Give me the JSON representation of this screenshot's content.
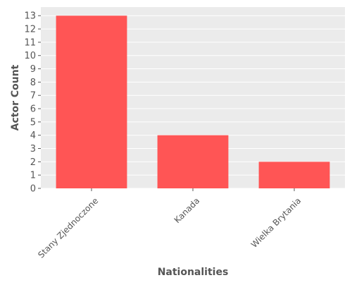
{
  "chart_data": {
    "type": "bar",
    "categories": [
      "Stany Zjednoczone",
      "Kanada",
      "Wielka Brytania"
    ],
    "values": [
      13,
      4,
      2
    ],
    "title": "",
    "xlabel": "Nationalities",
    "ylabel": "Actor Count",
    "ylim": [
      0,
      13.65
    ],
    "yticks": [
      "0",
      "1",
      "2",
      "3",
      "4",
      "5",
      "6",
      "7",
      "8",
      "9",
      "10",
      "11",
      "12",
      "13"
    ],
    "grid": true,
    "legend": "none",
    "colors": {
      "bar": "#ff5555",
      "plot_background": "#ebebeb",
      "gridline": "#ffffff",
      "text": "#555555"
    }
  }
}
